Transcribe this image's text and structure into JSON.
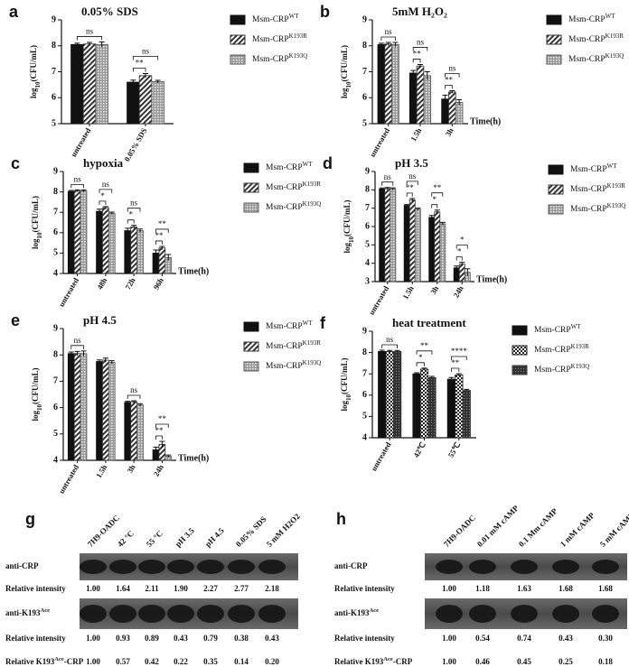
{
  "chart_data": [
    {
      "panel": "a",
      "type": "bar",
      "title": "0.05% SDS",
      "ylabel": {
        "base": "log",
        "sub": "10",
        "rest": "(CFU/mL)"
      },
      "categories": [
        "untreated",
        "0.05% SDS"
      ],
      "ylim": [
        5,
        9
      ],
      "yticks": [
        5,
        6,
        7,
        8,
        9
      ],
      "series": [
        {
          "name": "Msm-CRP",
          "name_sup": "WT",
          "color": "#111111",
          "pattern": "solid",
          "values": [
            8.05,
            6.6
          ],
          "errors": [
            0.05,
            0.08
          ]
        },
        {
          "name": "Msm-CRP",
          "name_sup": "K193R",
          "color": "#333333",
          "pattern": "hatch",
          "values": [
            8.07,
            6.85
          ],
          "errors": [
            0.06,
            0.08
          ]
        },
        {
          "name": "Msm-CRP",
          "name_sup": "K193Q",
          "color": "#555555",
          "pattern": "dots",
          "values": [
            8.05,
            6.62
          ],
          "errors": [
            0.1,
            0.05
          ]
        }
      ],
      "annotations": [
        {
          "text": "ns",
          "category": 0,
          "from": 0,
          "to": 2
        },
        {
          "text": "**",
          "category": 1,
          "from": 0,
          "to": 1
        },
        {
          "text": "ns",
          "category": 1,
          "from": 0,
          "to": 2
        }
      ]
    },
    {
      "panel": "b",
      "type": "bar",
      "title": "5mM H₂O₂",
      "ylabel": {
        "base": "log",
        "sub": "10",
        "rest": "(CFU/mL)"
      },
      "xlabel": "Time(h)",
      "categories": [
        "untreated",
        "1.5h",
        "3h"
      ],
      "ylim": [
        5,
        9
      ],
      "yticks": [
        5,
        6,
        7,
        8,
        9
      ],
      "series": [
        {
          "name": "Msm-CRP",
          "name_sup": "WT",
          "color": "#111111",
          "pattern": "solid",
          "values": [
            8.05,
            6.95,
            5.95
          ],
          "errors": [
            0.05,
            0.1,
            0.15
          ]
        },
        {
          "name": "Msm-CRP",
          "name_sup": "K193R",
          "color": "#333333",
          "pattern": "hatch",
          "values": [
            8.07,
            7.22,
            6.22
          ],
          "errors": [
            0.06,
            0.06,
            0.05
          ]
        },
        {
          "name": "Msm-CRP",
          "name_sup": "K193Q",
          "color": "#555555",
          "pattern": "dots",
          "values": [
            8.05,
            6.85,
            5.82
          ],
          "errors": [
            0.08,
            0.15,
            0.1
          ]
        }
      ],
      "annotations": [
        {
          "text": "ns",
          "category": 0,
          "from": 0,
          "to": 2
        },
        {
          "text": "**",
          "category": 1,
          "from": 0,
          "to": 1
        },
        {
          "text": "ns",
          "category": 1,
          "from": 0,
          "to": 2
        },
        {
          "text": "**",
          "category": 2,
          "from": 0,
          "to": 1
        },
        {
          "text": "ns",
          "category": 2,
          "from": 0,
          "to": 2
        }
      ]
    },
    {
      "panel": "c",
      "type": "bar",
      "title": "hypoxia",
      "ylabel": {
        "base": "log",
        "sub": "10",
        "rest": "(CFU/mL)"
      },
      "xlabel": "Time(h)",
      "categories": [
        "untreated",
        "48h",
        "72h",
        "96h"
      ],
      "ylim": [
        4,
        9
      ],
      "yticks": [
        4,
        5,
        6,
        7,
        8,
        9
      ],
      "series": [
        {
          "name": "Msm-CRP",
          "name_sup": "WT",
          "color": "#111111",
          "pattern": "solid",
          "values": [
            8.02,
            7.05,
            6.1,
            5.0
          ],
          "errors": [
            0.05,
            0.1,
            0.12,
            0.15
          ]
        },
        {
          "name": "Msm-CRP",
          "name_sup": "K193R",
          "color": "#333333",
          "pattern": "hatch",
          "values": [
            8.05,
            7.22,
            6.28,
            5.25
          ],
          "errors": [
            0.05,
            0.06,
            0.08,
            0.08
          ]
        },
        {
          "name": "Msm-CRP",
          "name_sup": "K193Q",
          "color": "#555555",
          "pattern": "dots",
          "values": [
            8.05,
            6.95,
            6.1,
            4.78
          ],
          "errors": [
            0.05,
            0.06,
            0.08,
            0.15
          ]
        }
      ],
      "annotations": [
        {
          "text": "ns",
          "category": 0,
          "from": 0,
          "to": 2
        },
        {
          "text": "*",
          "category": 1,
          "from": 0,
          "to": 1
        },
        {
          "text": "ns",
          "category": 1,
          "from": 0,
          "to": 2
        },
        {
          "text": "*",
          "category": 2,
          "from": 0,
          "to": 1
        },
        {
          "text": "ns",
          "category": 2,
          "from": 0,
          "to": 2
        },
        {
          "text": "**",
          "category": 3,
          "from": 0,
          "to": 1
        },
        {
          "text": "**",
          "category": 3,
          "from": 0,
          "to": 2
        }
      ]
    },
    {
      "panel": "d",
      "type": "bar",
      "title": "pH 3.5",
      "ylabel": {
        "base": "log",
        "sub": "10",
        "rest": "(CFU/mL)"
      },
      "xlabel": "Time(h)",
      "categories": [
        "untreated",
        "1.5h",
        "3h",
        "24h"
      ],
      "ylim": [
        3,
        9
      ],
      "yticks": [
        3,
        4,
        5,
        6,
        7,
        8,
        9
      ],
      "series": [
        {
          "name": "Msm-CRP",
          "name_sup": "WT",
          "color": "#111111",
          "pattern": "solid",
          "values": [
            8.05,
            7.15,
            6.5,
            3.75
          ],
          "errors": [
            0.05,
            0.05,
            0.1,
            0.1
          ]
        },
        {
          "name": "Msm-CRP",
          "name_sup": "K193R",
          "color": "#333333",
          "pattern": "hatch",
          "values": [
            8.07,
            7.45,
            6.8,
            3.95
          ],
          "errors": [
            0.06,
            0.08,
            0.1,
            0.1
          ]
        },
        {
          "name": "Msm-CRP",
          "name_sup": "K193Q",
          "color": "#555555",
          "pattern": "dots",
          "values": [
            8.05,
            6.95,
            6.15,
            3.5
          ],
          "errors": [
            0.06,
            0.05,
            0.08,
            0.2
          ]
        }
      ],
      "annotations": [
        {
          "text": "ns",
          "category": 0,
          "from": 0,
          "to": 2
        },
        {
          "text": "**",
          "category": 1,
          "from": 0,
          "to": 1
        },
        {
          "text": "ns",
          "category": 1,
          "from": 0,
          "to": 2
        },
        {
          "text": "*",
          "category": 2,
          "from": 0,
          "to": 1
        },
        {
          "text": "**",
          "category": 2,
          "from": 0,
          "to": 2
        },
        {
          "text": "*",
          "category": 3,
          "from": 0,
          "to": 1
        },
        {
          "text": "*",
          "category": 3,
          "from": 0,
          "to": 2
        }
      ]
    },
    {
      "panel": "e",
      "type": "bar",
      "title": "pH 4.5",
      "ylabel": {
        "base": "log",
        "sub": "10",
        "rest": "(CFU/mL)"
      },
      "xlabel": "Time(h)",
      "categories": [
        "untreated",
        "1.5h",
        "3h",
        "24h"
      ],
      "ylim": [
        4,
        9
      ],
      "yticks": [
        4,
        5,
        6,
        7,
        8,
        9
      ],
      "series": [
        {
          "name": "Msm-CRP",
          "name_sup": "WT",
          "color": "#111111",
          "pattern": "solid",
          "values": [
            8.05,
            7.75,
            6.2,
            4.4
          ],
          "errors": [
            0.06,
            0.06,
            0.04,
            0.1
          ]
        },
        {
          "name": "Msm-CRP",
          "name_sup": "K193R",
          "color": "#333333",
          "pattern": "hatch",
          "values": [
            8.05,
            7.8,
            6.22,
            4.6
          ],
          "errors": [
            0.08,
            0.08,
            0.04,
            0.12
          ]
        },
        {
          "name": "Msm-CRP",
          "name_sup": "K193Q",
          "color": "#555555",
          "pattern": "dots",
          "values": [
            8.05,
            7.72,
            6.1,
            4.15
          ],
          "errors": [
            0.1,
            0.06,
            0.05,
            0.05
          ]
        }
      ],
      "annotations": [
        {
          "text": "ns",
          "category": 0,
          "from": 0,
          "to": 2
        },
        {
          "text": "ns",
          "category": 2,
          "from": 0,
          "to": 2
        },
        {
          "text": "**",
          "category": 3,
          "from": 0,
          "to": 1
        },
        {
          "text": "**",
          "category": 3,
          "from": 0,
          "to": 2
        }
      ]
    },
    {
      "panel": "f",
      "type": "bar",
      "title": "heat treatment",
      "ylabel": {
        "base": "log",
        "sub": "10",
        "rest": "(CFU/mL)"
      },
      "categories": [
        "untreated",
        "42℃",
        "55℃"
      ],
      "ylim": [
        4,
        9
      ],
      "yticks": [
        4,
        5,
        6,
        7,
        8,
        9
      ],
      "series": [
        {
          "name": "Msm-CRP",
          "name_sup": "WT",
          "color": "#111111",
          "pattern": "solid",
          "values": [
            8.05,
            7.0,
            6.75
          ],
          "errors": [
            0.06,
            0.05,
            0.08
          ]
        },
        {
          "name": "Msm-CRP",
          "name_sup": "K193R",
          "color": "#222222",
          "pattern": "checker",
          "values": [
            8.05,
            7.22,
            6.95
          ],
          "errors": [
            0.05,
            0.05,
            0.06
          ]
        },
        {
          "name": "Msm-CRP",
          "name_sup": "K193Q",
          "color": "#333333",
          "pattern": "dense",
          "values": [
            8.05,
            6.82,
            6.22
          ],
          "errors": [
            0.05,
            0.06,
            0.05
          ]
        }
      ],
      "annotations": [
        {
          "text": "ns",
          "category": 0,
          "from": 0,
          "to": 2
        },
        {
          "text": "*",
          "category": 1,
          "from": 0,
          "to": 1
        },
        {
          "text": "**",
          "category": 1,
          "from": 0,
          "to": 2
        },
        {
          "text": "**",
          "category": 2,
          "from": 0,
          "to": 1
        },
        {
          "text": "****",
          "category": 2,
          "from": 0,
          "to": 2
        }
      ]
    }
  ],
  "blots": [
    {
      "panel": "g",
      "columns": [
        "7H9-OADC",
        "42 °C",
        "55 °C",
        "pH 3.5",
        "pH 4.5",
        "0.05% SDS",
        "5 mM H2O2"
      ],
      "rows": [
        {
          "label": {
            "text": "anti-CRP"
          }
        },
        {
          "label": {
            "text": "Relative intensity"
          },
          "values": [
            "1.00",
            "1.64",
            "2.11",
            "1.90",
            "2.27",
            "2.77",
            "2.18"
          ]
        },
        {
          "label": {
            "text": "anti-K193",
            "sup": "Ace"
          }
        },
        {
          "label": {
            "text": "Relative intensity"
          },
          "values": [
            "1.00",
            "0.93",
            "0.89",
            "0.43",
            "0.79",
            "0.38",
            "0.43"
          ]
        },
        {
          "label": {
            "text": "Relative K193",
            "sup": "Ace",
            "after": "-CRP"
          },
          "values": [
            "1.00",
            "0.57",
            "0.42",
            "0.22",
            "0.35",
            "0.14",
            "0.20"
          ]
        }
      ]
    },
    {
      "panel": "h",
      "columns": [
        "7H9-OADC",
        "0.01 mM cAMP",
        "0.1 Mm cAMP",
        "1 mM cAMP",
        "5 mM cAMP"
      ],
      "rows": [
        {
          "label": {
            "text": "anti-CRP"
          }
        },
        {
          "label": {
            "text": "Relative intensity"
          },
          "values": [
            "1.00",
            "1.18",
            "1.63",
            "1.68",
            "1.68"
          ]
        },
        {
          "label": {
            "text": "anti-K193",
            "sup": "Ace"
          }
        },
        {
          "label": {
            "text": "Relative intensity"
          },
          "values": [
            "1.00",
            "0.54",
            "0.74",
            "0.43",
            "0.30"
          ]
        },
        {
          "label": {
            "text": "Relative K193",
            "sup": "Ace",
            "after": "-CRP"
          },
          "values": [
            "1.00",
            "0.46",
            "0.45",
            "0.25",
            "0.18"
          ]
        }
      ]
    }
  ]
}
